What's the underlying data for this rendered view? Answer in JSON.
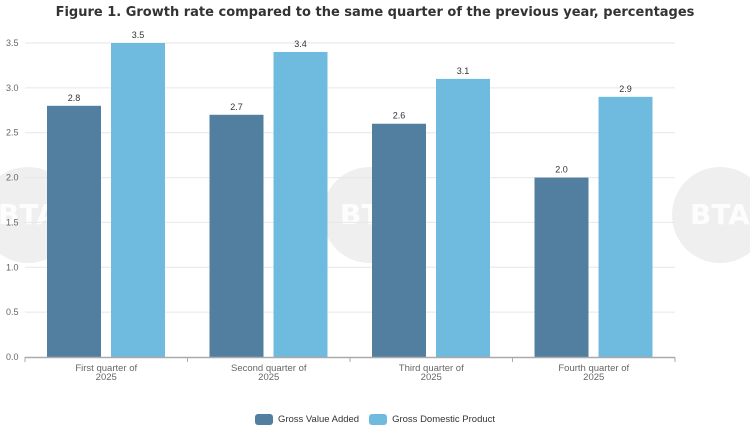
{
  "chart_data": {
    "type": "bar",
    "title": "Figure 1. Growth rate compared to the same quarter of the previous year, percentages",
    "categories": [
      [
        "First quarter of",
        "2025"
      ],
      [
        "Second quarter of",
        "2025"
      ],
      [
        "Third quarter of",
        "2025"
      ],
      [
        "Fourth quarter of",
        "2025"
      ]
    ],
    "series": [
      {
        "name": "Gross Value Added",
        "color": "#527f9f",
        "values": [
          2.8,
          2.7,
          2.6,
          2.0
        ]
      },
      {
        "name": "Gross Domestic Product",
        "color": "#6fbbdf",
        "values": [
          3.5,
          3.4,
          3.1,
          2.9
        ]
      }
    ],
    "yticks": [
      "0.0",
      "0.5",
      "1.0",
      "1.5",
      "2.0",
      "2.5",
      "3.0",
      "3.5"
    ],
    "ylim": [
      0,
      3.5
    ],
    "grid": true,
    "legend": "bottom"
  },
  "watermark": "BTA"
}
